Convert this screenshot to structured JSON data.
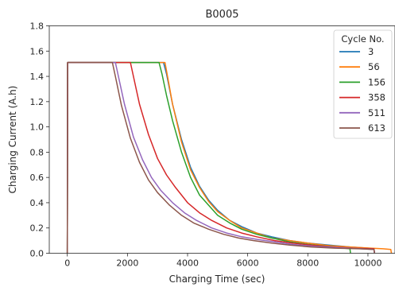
{
  "chart_data": {
    "type": "line",
    "title": "B0005",
    "xlabel": "Charging Time (sec)",
    "ylabel": "Charging Current (A.h)",
    "xlim": [
      -600,
      10900
    ],
    "ylim": [
      0.0,
      1.8
    ],
    "xticks": [
      0,
      2000,
      4000,
      6000,
      8000,
      10000
    ],
    "yticks": [
      0.0,
      0.2,
      0.4,
      0.6,
      0.8,
      1.0,
      1.2,
      1.4,
      1.6,
      1.8
    ],
    "grid": false,
    "legend": {
      "title": "Cycle No.",
      "placement": "top-right"
    },
    "series": [
      {
        "name": "3",
        "color": "#1f77b4",
        "x": [
          0,
          10,
          3200,
          3300,
          3500,
          3800,
          4100,
          4400,
          4700,
          5000,
          5400,
          5800,
          6300,
          6800,
          7400,
          8000,
          8700,
          9400,
          10000,
          10200,
          10220
        ],
        "y": [
          0,
          1.51,
          1.51,
          1.42,
          1.18,
          0.9,
          0.68,
          0.53,
          0.42,
          0.34,
          0.26,
          0.21,
          0.16,
          0.13,
          0.1,
          0.08,
          0.065,
          0.05,
          0.04,
          0.035,
          0
        ]
      },
      {
        "name": "56",
        "color": "#ff7f0e",
        "x": [
          0,
          10,
          3250,
          3350,
          3500,
          3800,
          4100,
          4400,
          4700,
          5000,
          5400,
          5800,
          6300,
          6800,
          7400,
          8000,
          8700,
          9400,
          10100,
          10500,
          10760,
          10780
        ],
        "y": [
          0,
          1.51,
          1.51,
          1.38,
          1.18,
          0.88,
          0.66,
          0.52,
          0.41,
          0.33,
          0.26,
          0.2,
          0.16,
          0.12,
          0.1,
          0.08,
          0.06,
          0.05,
          0.04,
          0.035,
          0.03,
          0
        ]
      },
      {
        "name": "156",
        "color": "#2ca02c",
        "x": [
          0,
          10,
          3050,
          3150,
          3300,
          3500,
          3800,
          4100,
          4400,
          4700,
          5000,
          5400,
          5800,
          6300,
          6800,
          7400,
          8000,
          8600,
          9200,
          9400,
          9420
        ],
        "y": [
          0,
          1.51,
          1.51,
          1.42,
          1.25,
          1.05,
          0.8,
          0.6,
          0.46,
          0.38,
          0.3,
          0.24,
          0.19,
          0.15,
          0.12,
          0.09,
          0.07,
          0.055,
          0.04,
          0.035,
          0
        ]
      },
      {
        "name": "358",
        "color": "#d62728",
        "x": [
          0,
          10,
          2100,
          2200,
          2400,
          2700,
          3000,
          3300,
          3600,
          4000,
          4400,
          4800,
          5300,
          5800,
          6300,
          6900,
          7500,
          8100,
          8800,
          9500,
          10200,
          10220
        ],
        "y": [
          0,
          1.51,
          1.51,
          1.4,
          1.18,
          0.94,
          0.75,
          0.62,
          0.52,
          0.4,
          0.32,
          0.26,
          0.2,
          0.16,
          0.13,
          0.1,
          0.08,
          0.065,
          0.05,
          0.04,
          0.035,
          0
        ]
      },
      {
        "name": "511",
        "color": "#9467bd",
        "x": [
          0,
          10,
          1600,
          1700,
          1900,
          2200,
          2500,
          2800,
          3100,
          3500,
          3900,
          4300,
          4800,
          5300,
          5800,
          6300,
          6900,
          7500,
          8200,
          9000,
          9800,
          10200,
          10220
        ],
        "y": [
          0,
          1.51,
          1.51,
          1.4,
          1.18,
          0.92,
          0.74,
          0.6,
          0.5,
          0.4,
          0.32,
          0.26,
          0.2,
          0.16,
          0.13,
          0.11,
          0.09,
          0.07,
          0.055,
          0.045,
          0.035,
          0.03,
          0
        ]
      },
      {
        "name": "613",
        "color": "#8c564b",
        "x": [
          0,
          10,
          1500,
          1600,
          1800,
          2100,
          2400,
          2700,
          3000,
          3400,
          3800,
          4200,
          4700,
          5200,
          5700,
          6200,
          6800,
          7400,
          8100,
          8900,
          9700,
          10200,
          10220
        ],
        "y": [
          0,
          1.51,
          1.51,
          1.4,
          1.17,
          0.91,
          0.72,
          0.58,
          0.48,
          0.38,
          0.3,
          0.24,
          0.19,
          0.15,
          0.12,
          0.1,
          0.08,
          0.065,
          0.05,
          0.04,
          0.035,
          0.03,
          0
        ]
      }
    ]
  }
}
